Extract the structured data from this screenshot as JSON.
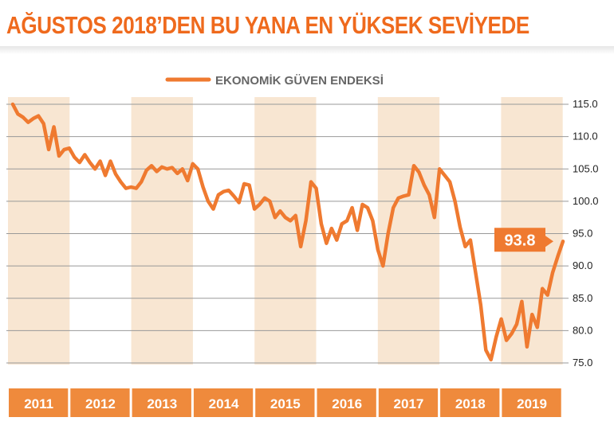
{
  "title": "AĞUSTOS 2018’DEN BU YANA EN YÜKSEK SEVİYEDE",
  "colors": {
    "accent": "#ef7a30",
    "title": "#ef6a1d",
    "band": "#f8e6d2",
    "year_bar": "#ef8a3c",
    "grid": "#999999"
  },
  "chart_data": {
    "type": "line",
    "legend": {
      "label": "EKONOMİK GÜVEN ENDEKSİ",
      "position": "top-center"
    },
    "ylim": [
      72.5,
      116.5
    ],
    "yticks": [
      "115.0",
      "110.0",
      "105.0",
      "100.0",
      "95.0",
      "90.0",
      "85.0",
      "80.0",
      "75.0"
    ],
    "ytick_values": [
      115,
      110,
      105,
      100,
      95,
      90,
      85,
      80,
      75
    ],
    "years": [
      "2011",
      "2012",
      "2013",
      "2014",
      "2015",
      "2016",
      "2017",
      "2018",
      "2019"
    ],
    "alternating_year_shading": true,
    "grid": true,
    "series": [
      {
        "name": "EKONOMİK GÜVEN ENDEKSİ",
        "x_start": "2011-01",
        "frequency": "monthly",
        "values": [
          115.0,
          113.5,
          113.0,
          112.2,
          112.8,
          113.2,
          112.0,
          108.0,
          111.5,
          107.0,
          108.0,
          108.2,
          106.8,
          106.0,
          107.2,
          106.0,
          105.0,
          106.2,
          104.0,
          106.2,
          104.2,
          103.0,
          102.0,
          102.2,
          102.0,
          103.0,
          104.8,
          105.5,
          104.6,
          105.3,
          105.0,
          105.2,
          104.3,
          105.0,
          103.2,
          105.8,
          105.0,
          102.2,
          100.0,
          98.8,
          101.0,
          101.5,
          101.7,
          100.8,
          99.8,
          102.7,
          102.5,
          98.8,
          99.5,
          100.5,
          100.0,
          97.5,
          98.5,
          97.5,
          97.0,
          97.8,
          93.0,
          97.0,
          103.0,
          102.0,
          96.5,
          93.5,
          95.8,
          94.0,
          96.5,
          97.0,
          99.0,
          95.5,
          99.5,
          99.0,
          97.0,
          92.5,
          90.0,
          95.0,
          99.0,
          100.5,
          100.8,
          101.0,
          105.5,
          104.5,
          102.5,
          101.0,
          97.5,
          105.0,
          104.0,
          103.0,
          100.0,
          96.0,
          93.0,
          94.0,
          89.0,
          84.0,
          77.0,
          75.5,
          79.0,
          81.8,
          78.5,
          79.5,
          81.0,
          84.5,
          77.5,
          82.5,
          80.5,
          86.5,
          85.5,
          89.0,
          91.5,
          93.8
        ]
      }
    ],
    "annotation": {
      "label": "93.8",
      "value": 93.8,
      "at": "last"
    }
  }
}
